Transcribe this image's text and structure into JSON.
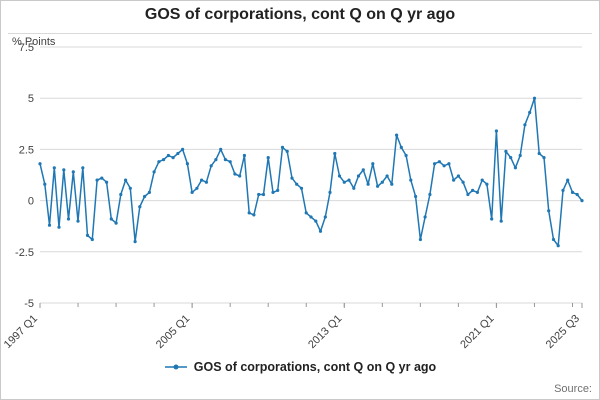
{
  "chart_data": {
    "type": "line",
    "title": "GOS of corporations, cont Q on Q yr ago",
    "ylabel": "% Points",
    "xlabel": "",
    "legend": "GOS of corporations, cont Q on Q yr ago",
    "ylim": [
      -5,
      7.5
    ],
    "y_ticks": [
      7.5,
      5,
      2.5,
      0,
      -2.5,
      -5
    ],
    "x_unit": "quarter",
    "x_ticks": [
      {
        "label": "1997 Q1",
        "index": 0
      },
      {
        "label": "2005 Q1",
        "index": 32
      },
      {
        "label": "2013 Q1",
        "index": 64
      },
      {
        "label": "2021 Q1",
        "index": 96
      },
      {
        "label": "2025 Q3",
        "index": 114
      }
    ],
    "minor_tick_step_quarters": 8,
    "grid": true,
    "legend_position": "bottom",
    "line_color": "#1f77b4",
    "grid_color": "#d9d9d9",
    "tick_color": "#999999",
    "axis_text_color": "#414042",
    "values": [
      1.8,
      0.8,
      -1.2,
      1.6,
      -1.3,
      1.5,
      -0.9,
      1.4,
      -1.0,
      1.6,
      -1.7,
      -1.9,
      1.0,
      1.1,
      0.9,
      -0.9,
      -1.1,
      0.3,
      1.0,
      0.6,
      -2.0,
      -0.3,
      0.2,
      0.4,
      1.4,
      1.9,
      2.0,
      2.2,
      2.1,
      2.3,
      2.5,
      1.8,
      0.4,
      0.6,
      1.0,
      0.9,
      1.7,
      2.0,
      2.5,
      2.0,
      1.9,
      1.3,
      1.2,
      2.2,
      -0.6,
      -0.7,
      0.3,
      0.3,
      2.1,
      0.4,
      0.5,
      2.6,
      2.4,
      1.1,
      0.8,
      0.6,
      -0.6,
      -0.8,
      -1.0,
      -1.5,
      -0.8,
      0.4,
      2.3,
      1.2,
      0.9,
      1.0,
      0.6,
      1.2,
      1.5,
      0.8,
      1.8,
      0.7,
      0.9,
      1.2,
      0.8,
      3.2,
      2.6,
      2.2,
      1.0,
      0.2,
      -1.9,
      -0.8,
      0.3,
      1.8,
      1.9,
      1.7,
      1.8,
      1.0,
      1.2,
      0.9,
      0.3,
      0.5,
      0.4,
      1.0,
      0.8,
      -0.9,
      3.4,
      -1.0,
      2.4,
      2.1,
      1.6,
      2.2,
      3.7,
      4.3,
      5.0,
      2.3,
      2.1,
      -0.5,
      -1.9,
      -2.2,
      0.5,
      1.0,
      0.4,
      0.3,
      0.0
    ]
  },
  "footer": {
    "source": "Source:"
  }
}
